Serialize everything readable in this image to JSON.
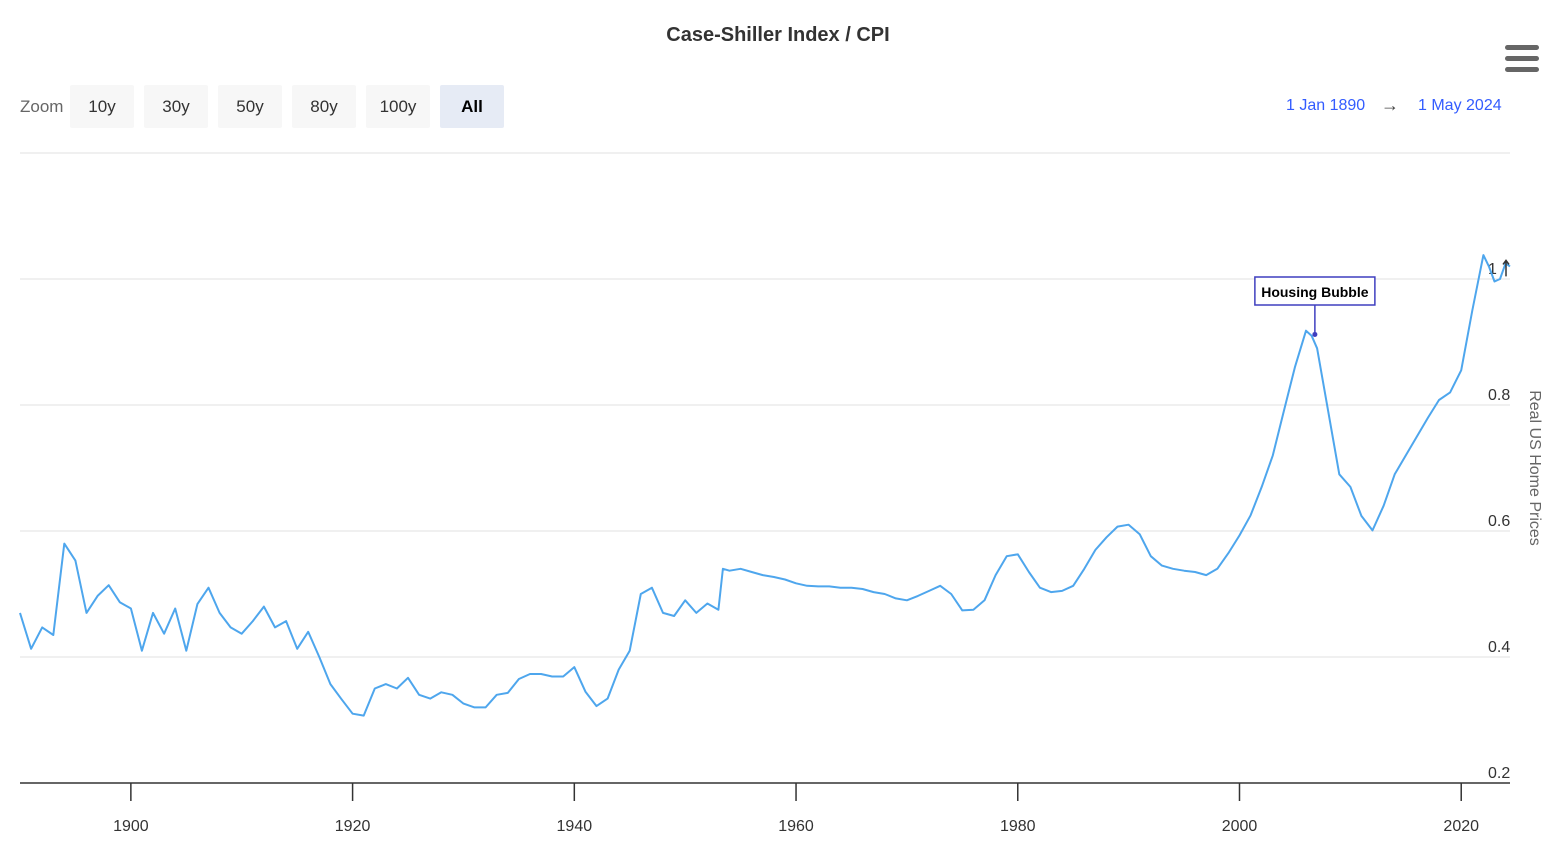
{
  "chart_data": {
    "type": "line",
    "title": "Case-Shiller Index / CPI",
    "ylabel": "Real US Home Prices",
    "xlabel": "",
    "xlim": [
      1890,
      2024.4
    ],
    "ylim": [
      0.2,
      1.2
    ],
    "x_ticks": [
      "1900",
      "1920",
      "1940",
      "1960",
      "1980",
      "2000",
      "2020"
    ],
    "y_ticks": [
      "0.2",
      "0.4",
      "0.6",
      "0.8",
      "1"
    ],
    "grid": true,
    "line_color": "#4ea6ed",
    "series": [
      {
        "points": [
          [
            1890,
            0.47
          ],
          [
            1891,
            0.413
          ],
          [
            1892,
            0.447
          ],
          [
            1893,
            0.435
          ],
          [
            1894,
            0.58
          ],
          [
            1895,
            0.553
          ],
          [
            1896,
            0.47
          ],
          [
            1897,
            0.497
          ],
          [
            1898,
            0.514
          ],
          [
            1899,
            0.487
          ],
          [
            1900,
            0.477
          ],
          [
            1901,
            0.41
          ],
          [
            1902,
            0.47
          ],
          [
            1903,
            0.437
          ],
          [
            1904,
            0.477
          ],
          [
            1905,
            0.41
          ],
          [
            1906,
            0.484
          ],
          [
            1907,
            0.51
          ],
          [
            1908,
            0.47
          ],
          [
            1909,
            0.447
          ],
          [
            1910,
            0.437
          ],
          [
            1911,
            0.457
          ],
          [
            1912,
            0.48
          ],
          [
            1913,
            0.447
          ],
          [
            1914,
            0.457
          ],
          [
            1915,
            0.413
          ],
          [
            1916,
            0.44
          ],
          [
            1917,
            0.4
          ],
          [
            1918,
            0.357
          ],
          [
            1919,
            0.333
          ],
          [
            1920,
            0.31
          ],
          [
            1921,
            0.307
          ],
          [
            1922,
            0.35
          ],
          [
            1923,
            0.357
          ],
          [
            1924,
            0.35
          ],
          [
            1925,
            0.367
          ],
          [
            1926,
            0.34
          ],
          [
            1927,
            0.334
          ],
          [
            1928,
            0.344
          ],
          [
            1929,
            0.34
          ],
          [
            1930,
            0.326
          ],
          [
            1931,
            0.32
          ],
          [
            1932,
            0.32
          ],
          [
            1933,
            0.34
          ],
          [
            1934,
            0.343
          ],
          [
            1935,
            0.365
          ],
          [
            1936,
            0.373
          ],
          [
            1937,
            0.373
          ],
          [
            1938,
            0.369
          ],
          [
            1939,
            0.369
          ],
          [
            1940,
            0.384
          ],
          [
            1941,
            0.345
          ],
          [
            1942,
            0.322
          ],
          [
            1943,
            0.334
          ],
          [
            1944,
            0.38
          ],
          [
            1945,
            0.41
          ],
          [
            1946,
            0.5
          ],
          [
            1947,
            0.51
          ],
          [
            1948,
            0.47
          ],
          [
            1949,
            0.465
          ],
          [
            1950,
            0.49
          ],
          [
            1951,
            0.47
          ],
          [
            1952,
            0.485
          ],
          [
            1953,
            0.475
          ],
          [
            1953.4,
            0.54
          ],
          [
            1954,
            0.537
          ],
          [
            1955,
            0.54
          ],
          [
            1956,
            0.535
          ],
          [
            1957,
            0.53
          ],
          [
            1958,
            0.527
          ],
          [
            1959,
            0.523
          ],
          [
            1960,
            0.517
          ],
          [
            1961,
            0.513
          ],
          [
            1962,
            0.512
          ],
          [
            1963,
            0.512
          ],
          [
            1964,
            0.51
          ],
          [
            1965,
            0.51
          ],
          [
            1966,
            0.508
          ],
          [
            1967,
            0.503
          ],
          [
            1968,
            0.5
          ],
          [
            1969,
            0.493
          ],
          [
            1970,
            0.49
          ],
          [
            1971,
            0.497
          ],
          [
            1972,
            0.505
          ],
          [
            1973,
            0.513
          ],
          [
            1974,
            0.5
          ],
          [
            1975,
            0.474
          ],
          [
            1976,
            0.475
          ],
          [
            1977,
            0.49
          ],
          [
            1978,
            0.53
          ],
          [
            1979,
            0.56
          ],
          [
            1980,
            0.563
          ],
          [
            1981,
            0.535
          ],
          [
            1982,
            0.51
          ],
          [
            1983,
            0.503
          ],
          [
            1984,
            0.505
          ],
          [
            1985,
            0.513
          ],
          [
            1986,
            0.54
          ],
          [
            1987,
            0.57
          ],
          [
            1988,
            0.59
          ],
          [
            1989,
            0.607
          ],
          [
            1990,
            0.61
          ],
          [
            1991,
            0.595
          ],
          [
            1992,
            0.56
          ],
          [
            1993,
            0.545
          ],
          [
            1994,
            0.54
          ],
          [
            1995,
            0.537
          ],
          [
            1996,
            0.535
          ],
          [
            1997,
            0.53
          ],
          [
            1998,
            0.54
          ],
          [
            1999,
            0.565
          ],
          [
            2000,
            0.593
          ],
          [
            2001,
            0.625
          ],
          [
            2002,
            0.67
          ],
          [
            2003,
            0.72
          ],
          [
            2004,
            0.79
          ],
          [
            2005,
            0.86
          ],
          [
            2006,
            0.918
          ],
          [
            2006.5,
            0.91
          ],
          [
            2007,
            0.89
          ],
          [
            2008,
            0.79
          ],
          [
            2009,
            0.69
          ],
          [
            2010,
            0.67
          ],
          [
            2011,
            0.624
          ],
          [
            2012,
            0.601
          ],
          [
            2013,
            0.64
          ],
          [
            2014,
            0.69
          ],
          [
            2015,
            0.72
          ],
          [
            2016,
            0.75
          ],
          [
            2017,
            0.78
          ],
          [
            2018,
            0.808
          ],
          [
            2019,
            0.82
          ],
          [
            2020,
            0.855
          ],
          [
            2021,
            0.95
          ],
          [
            2022,
            1.038
          ],
          [
            2022.5,
            1.02
          ],
          [
            2023,
            0.996
          ],
          [
            2023.5,
            1.0
          ],
          [
            2024,
            1.025
          ],
          [
            2024.4,
            1.02
          ]
        ]
      }
    ],
    "annotations": [
      {
        "label": "Housing Bubble",
        "x": 2006.8,
        "y": 0.912
      }
    ]
  },
  "header": {
    "title": "Case-Shiller Index / CPI",
    "menu_icon": "hamburger-menu-icon"
  },
  "range_selector": {
    "zoom_label": "Zoom",
    "buttons": [
      "10y",
      "30y",
      "50y",
      "80y",
      "100y",
      "All"
    ],
    "selected": "All",
    "from": "1 Jan 1890",
    "arrow": "→",
    "to": "1 May 2024"
  }
}
